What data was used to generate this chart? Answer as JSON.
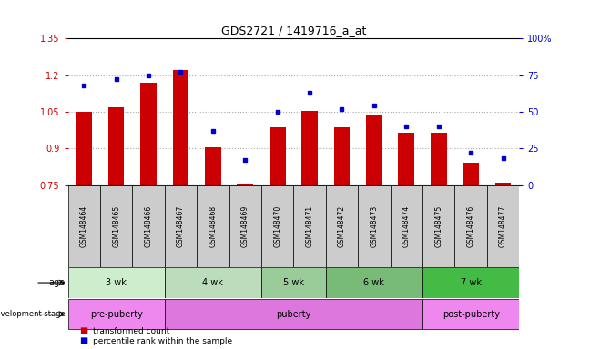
{
  "title": "GDS2721 / 1419716_a_at",
  "samples": [
    "GSM148464",
    "GSM148465",
    "GSM148466",
    "GSM148467",
    "GSM148468",
    "GSM148469",
    "GSM148470",
    "GSM148471",
    "GSM148472",
    "GSM148473",
    "GSM148474",
    "GSM148475",
    "GSM148476",
    "GSM148477"
  ],
  "transformed_count": [
    1.05,
    1.07,
    1.17,
    1.22,
    0.905,
    0.755,
    0.985,
    1.055,
    0.985,
    1.04,
    0.965,
    0.965,
    0.84,
    0.76
  ],
  "percentile_rank": [
    0.68,
    0.72,
    0.75,
    0.77,
    0.37,
    0.17,
    0.5,
    0.63,
    0.52,
    0.54,
    0.4,
    0.4,
    0.22,
    0.18
  ],
  "ylim": [
    0.75,
    1.35
  ],
  "yticks_left": [
    0.75,
    0.9,
    1.05,
    1.2,
    1.35
  ],
  "yticks_right": [
    0,
    25,
    50,
    75,
    100
  ],
  "bar_color": "#cc0000",
  "dot_color": "#0000cc",
  "age_groups": [
    {
      "label": "3 wk",
      "start": 0,
      "end": 3,
      "color": "#cceecc"
    },
    {
      "label": "4 wk",
      "start": 3,
      "end": 6,
      "color": "#bbddbb"
    },
    {
      "label": "5 wk",
      "start": 6,
      "end": 8,
      "color": "#99cc99"
    },
    {
      "label": "6 wk",
      "start": 8,
      "end": 11,
      "color": "#77bb77"
    },
    {
      "label": "7 wk",
      "start": 11,
      "end": 14,
      "color": "#44bb44"
    }
  ],
  "dev_groups": [
    {
      "label": "pre-puberty",
      "start": 0,
      "end": 3,
      "color": "#ee88ee"
    },
    {
      "label": "puberty",
      "start": 3,
      "end": 11,
      "color": "#dd77dd"
    },
    {
      "label": "post-puberty",
      "start": 11,
      "end": 14,
      "color": "#ee88ee"
    }
  ],
  "legend_bar_label": "transformed count",
  "legend_dot_label": "percentile rank within the sample",
  "grid_color": "#aaaaaa",
  "bg_color": "#ffffff",
  "label_row_bg": "#cccccc"
}
